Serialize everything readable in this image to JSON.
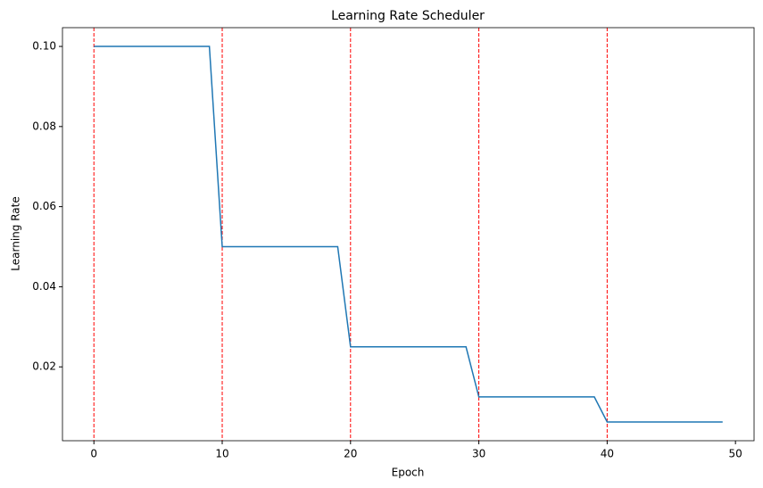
{
  "chart_data": {
    "type": "line",
    "title": "Learning Rate Scheduler",
    "x_label": "Epoch",
    "y_label": "Learning Rate",
    "x": [
      0,
      1,
      2,
      3,
      4,
      5,
      6,
      7,
      8,
      9,
      10,
      11,
      12,
      13,
      14,
      15,
      16,
      17,
      18,
      19,
      20,
      21,
      22,
      23,
      24,
      25,
      26,
      27,
      28,
      29,
      30,
      31,
      32,
      33,
      34,
      35,
      36,
      37,
      38,
      39,
      40,
      41,
      42,
      43,
      44,
      45,
      46,
      47,
      48,
      49
    ],
    "values": [
      0.1,
      0.1,
      0.1,
      0.1,
      0.1,
      0.1,
      0.1,
      0.1,
      0.1,
      0.1,
      0.05,
      0.05,
      0.05,
      0.05,
      0.05,
      0.05,
      0.05,
      0.05,
      0.05,
      0.05,
      0.025,
      0.025,
      0.025,
      0.025,
      0.025,
      0.025,
      0.025,
      0.025,
      0.025,
      0.025,
      0.0125,
      0.0125,
      0.0125,
      0.0125,
      0.0125,
      0.0125,
      0.0125,
      0.0125,
      0.0125,
      0.0125,
      0.00625,
      0.00625,
      0.00625,
      0.00625,
      0.00625,
      0.00625,
      0.00625,
      0.00625,
      0.00625,
      0.00625
    ],
    "color": "#1f77b4",
    "vlines": [
      0,
      10,
      20,
      30,
      40
    ],
    "vline_color": "red",
    "xlim": [
      -2.45,
      51.45
    ],
    "xticks": [
      0,
      10,
      20,
      30,
      40,
      50
    ],
    "ylim": [
      0.0015625,
      0.1046875
    ],
    "yticks": [
      0.02,
      0.04,
      0.06,
      0.08,
      {
        "value": 0.1,
        "label": "0.10"
      }
    ],
    "grid": false
  }
}
